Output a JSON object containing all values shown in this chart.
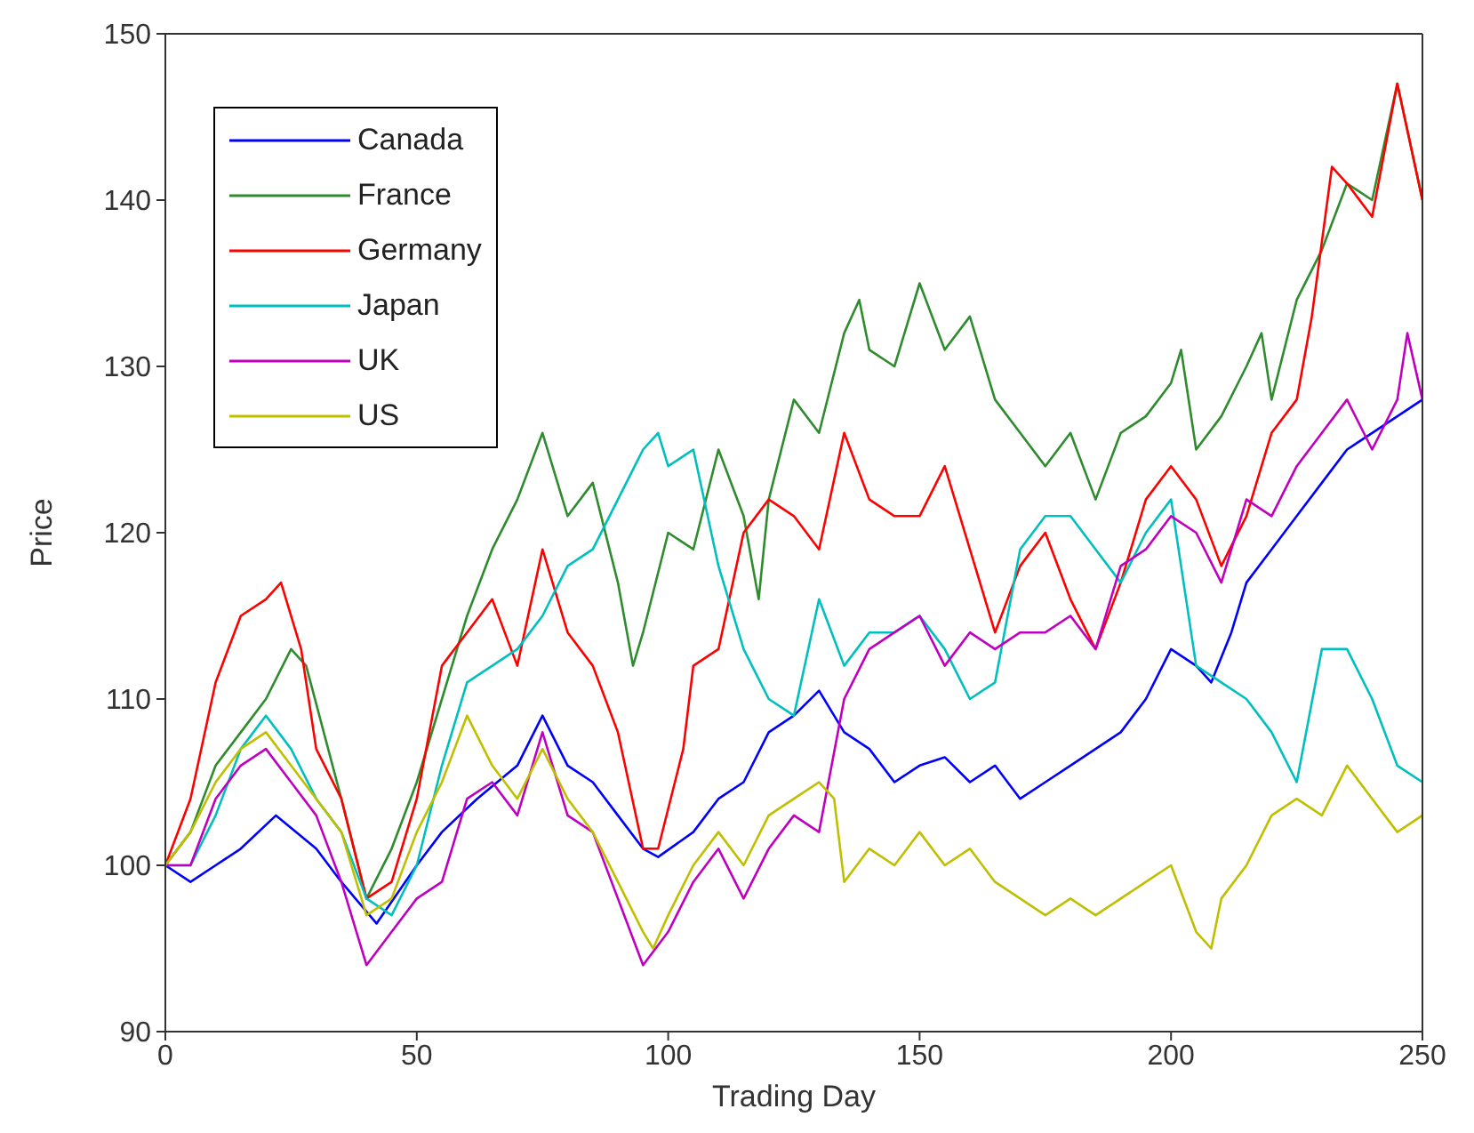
{
  "chart_data": {
    "type": "line",
    "xlabel": "Trading Day",
    "ylabel": "Price",
    "xlim": [
      0,
      250
    ],
    "xticks": [
      0,
      50,
      100,
      150,
      200,
      250
    ],
    "ylim": [
      90,
      150
    ],
    "yticks": [
      90,
      100,
      110,
      120,
      130,
      140,
      150
    ],
    "legend": "top left",
    "marker": "none",
    "line_style": "solid",
    "series": [
      {
        "name": "Canada",
        "color": "#0000ff",
        "x": [
          0,
          5,
          10,
          15,
          22,
          30,
          35,
          42,
          50,
          55,
          62,
          70,
          75,
          80,
          85,
          90,
          95,
          98,
          105,
          110,
          115,
          120,
          125,
          130,
          135,
          140,
          145,
          150,
          155,
          160,
          165,
          170,
          175,
          180,
          185,
          190,
          195,
          200,
          205,
          208,
          212,
          215,
          220,
          225,
          230,
          235,
          240,
          245,
          250
        ],
        "values": [
          100,
          99,
          100,
          101,
          103,
          101,
          99,
          96.5,
          100,
          102,
          104,
          106,
          109,
          106,
          105,
          103,
          101,
          100.5,
          102,
          104,
          105,
          108,
          109,
          110.5,
          108,
          107,
          105,
          106,
          106.5,
          105,
          106,
          104,
          105,
          106,
          107,
          108,
          110,
          113,
          112,
          111,
          114,
          117,
          119,
          121,
          123,
          125,
          126,
          127,
          128
        ]
      },
      {
        "name": "France",
        "color": "#2e8b2e",
        "x": [
          0,
          5,
          10,
          15,
          20,
          25,
          28,
          35,
          40,
          45,
          50,
          55,
          60,
          65,
          70,
          75,
          80,
          85,
          90,
          93,
          95,
          100,
          105,
          110,
          115,
          118,
          120,
          125,
          130,
          135,
          138,
          140,
          145,
          150,
          155,
          160,
          165,
          170,
          175,
          180,
          185,
          190,
          195,
          200,
          202,
          205,
          210,
          215,
          218,
          220,
          225,
          230,
          235,
          240,
          245,
          250
        ],
        "values": [
          100,
          102,
          106,
          108,
          110,
          113,
          112,
          104,
          98,
          101,
          105,
          110,
          115,
          119,
          122,
          126,
          121,
          123,
          117,
          112,
          114,
          120,
          119,
          125,
          121,
          116,
          122,
          128,
          126,
          132,
          134,
          131,
          130,
          135,
          131,
          133,
          128,
          126,
          124,
          126,
          122,
          126,
          127,
          129,
          131,
          125,
          127,
          130,
          132,
          128,
          134,
          137,
          141,
          140,
          147,
          140
        ]
      },
      {
        "name": "Germany",
        "color": "#ff0000",
        "x": [
          0,
          5,
          10,
          15,
          20,
          23,
          27,
          30,
          35,
          40,
          45,
          50,
          55,
          60,
          65,
          70,
          75,
          80,
          85,
          90,
          95,
          98,
          103,
          105,
          110,
          115,
          120,
          125,
          130,
          135,
          140,
          145,
          150,
          155,
          160,
          165,
          170,
          175,
          180,
          185,
          190,
          195,
          200,
          205,
          210,
          215,
          220,
          225,
          228,
          232,
          235,
          240,
          245,
          250
        ],
        "values": [
          100,
          104,
          111,
          115,
          116,
          117,
          113,
          107,
          104,
          98,
          99,
          104,
          112,
          114,
          116,
          112,
          119,
          114,
          112,
          108,
          101,
          101,
          107,
          112,
          113,
          120,
          122,
          121,
          119,
          126,
          122,
          121,
          121,
          124,
          119,
          114,
          118,
          120,
          116,
          113,
          117,
          122,
          124,
          122,
          118,
          121,
          126,
          128,
          133,
          142,
          141,
          139,
          147,
          140
        ]
      },
      {
        "name": "Japan",
        "color": "#00bfbf",
        "x": [
          0,
          5,
          10,
          15,
          20,
          25,
          30,
          35,
          40,
          45,
          50,
          55,
          60,
          65,
          70,
          75,
          80,
          85,
          90,
          95,
          98,
          100,
          105,
          110,
          115,
          120,
          125,
          130,
          135,
          140,
          145,
          150,
          155,
          160,
          165,
          170,
          175,
          180,
          185,
          190,
          195,
          200,
          205,
          210,
          215,
          220,
          225,
          230,
          235,
          240,
          245,
          250
        ],
        "values": [
          100,
          100,
          103,
          107,
          109,
          107,
          104,
          102,
          98,
          97,
          100,
          106,
          111,
          112,
          113,
          115,
          118,
          119,
          122,
          125,
          126,
          124,
          125,
          118,
          113,
          110,
          109,
          116,
          112,
          114,
          114,
          115,
          113,
          110,
          111,
          119,
          121,
          121,
          119,
          117,
          120,
          122,
          112,
          111,
          110,
          108,
          105,
          113,
          113,
          110,
          106,
          105
        ]
      },
      {
        "name": "UK",
        "color": "#bf00bf",
        "x": [
          0,
          5,
          10,
          15,
          20,
          25,
          30,
          35,
          40,
          45,
          50,
          55,
          60,
          65,
          70,
          75,
          80,
          85,
          90,
          95,
          100,
          105,
          110,
          115,
          120,
          125,
          130,
          135,
          140,
          145,
          150,
          155,
          160,
          165,
          170,
          175,
          180,
          185,
          190,
          195,
          200,
          205,
          210,
          215,
          220,
          225,
          230,
          235,
          240,
          245,
          247,
          250
        ],
        "values": [
          100,
          100,
          104,
          106,
          107,
          105,
          103,
          99,
          94,
          96,
          98,
          99,
          104,
          105,
          103,
          108,
          103,
          102,
          98,
          94,
          96,
          99,
          101,
          98,
          101,
          103,
          102,
          110,
          113,
          114,
          115,
          112,
          114,
          113,
          114,
          114,
          115,
          113,
          118,
          119,
          121,
          120,
          117,
          122,
          121,
          124,
          126,
          128,
          125,
          128,
          132,
          128
        ]
      },
      {
        "name": "US",
        "color": "#bfbf00",
        "x": [
          0,
          5,
          10,
          15,
          20,
          25,
          30,
          35,
          40,
          45,
          50,
          55,
          60,
          65,
          70,
          75,
          80,
          85,
          90,
          95,
          97,
          100,
          105,
          110,
          115,
          120,
          125,
          130,
          133,
          135,
          140,
          145,
          150,
          155,
          160,
          165,
          170,
          175,
          180,
          185,
          190,
          195,
          200,
          205,
          208,
          210,
          215,
          220,
          225,
          230,
          235,
          240,
          245,
          250
        ],
        "values": [
          100,
          102,
          105,
          107,
          108,
          106,
          104,
          102,
          97,
          98,
          102,
          105,
          109,
          106,
          104,
          107,
          104,
          102,
          99,
          96,
          95,
          97,
          100,
          102,
          100,
          103,
          104,
          105,
          104,
          99,
          101,
          100,
          102,
          100,
          101,
          99,
          98,
          97,
          98,
          97,
          98,
          99,
          100,
          96,
          95,
          98,
          100,
          103,
          104,
          103,
          106,
          104,
          102,
          103
        ]
      }
    ]
  }
}
